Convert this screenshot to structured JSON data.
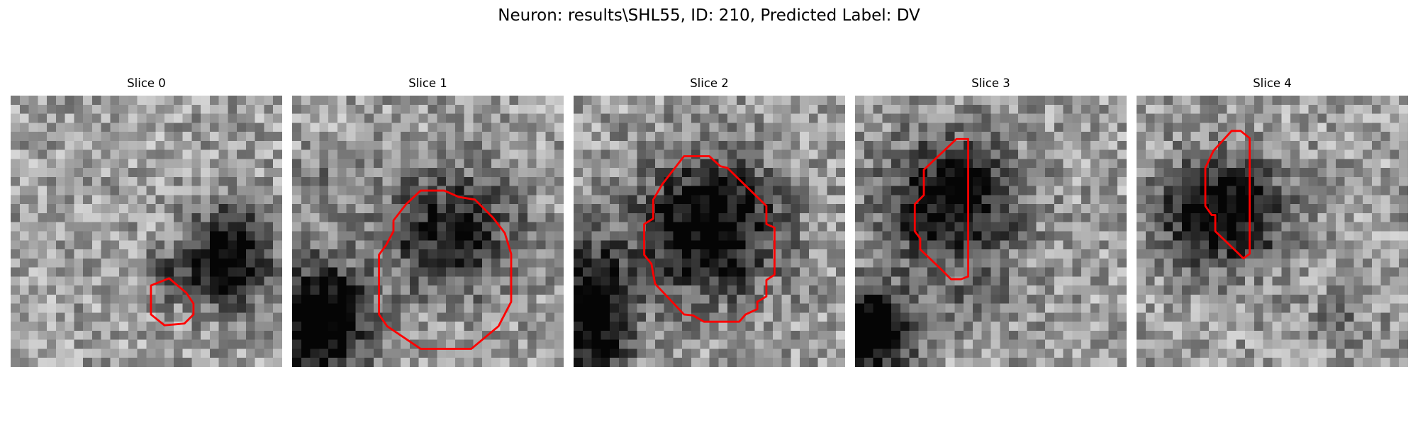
{
  "figure": {
    "suptitle": "Neuron: results\\SHL55, ID: 210, Predicted Label: DV",
    "outline_color": "#ff0000"
  },
  "panels": [
    {
      "title": "Slice 0"
    },
    {
      "title": "Slice 1"
    },
    {
      "title": "Slice 2"
    },
    {
      "title": "Slice 3"
    },
    {
      "title": "Slice 4"
    }
  ]
}
